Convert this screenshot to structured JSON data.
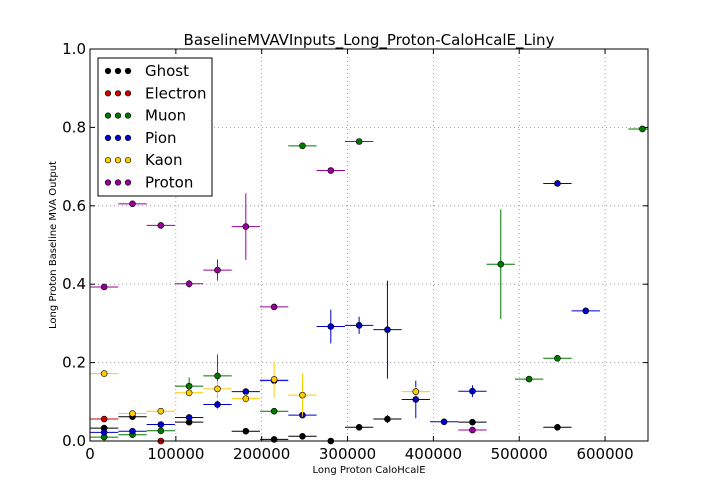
{
  "chart_data": {
    "type": "scatter",
    "title": "BaselineMVAVInputs_Long_Proton-CaloHcalE_Liny",
    "xlabel": "Long Proton CaloHcalE",
    "ylabel": "Long Proton Baseline MVA Output",
    "xlim": [
      0,
      650000
    ],
    "ylim": [
      0.0,
      1.0
    ],
    "xticks": [
      0,
      100000,
      200000,
      300000,
      400000,
      500000,
      600000
    ],
    "xtick_labels": [
      "0",
      "100000",
      "200000",
      "300000",
      "400000",
      "500000",
      "600000"
    ],
    "yticks": [
      0.0,
      0.2,
      0.4,
      0.6,
      0.8,
      1.0
    ],
    "ytick_labels": [
      "0.0",
      "0.2",
      "0.4",
      "0.6",
      "0.8",
      "1.0"
    ],
    "grid": true,
    "legend_position": "top-left",
    "x_bin_half_width": 16500,
    "series": [
      {
        "name": "Ghost",
        "color": "#000000",
        "points": [
          {
            "x": 16500,
            "y": 0.033,
            "yerr": 0.004
          },
          {
            "x": 49500,
            "y": 0.062,
            "yerr": 0.004
          },
          {
            "x": 115500,
            "y": 0.048,
            "yerr": 0.004
          },
          {
            "x": 181500,
            "y": 0.025,
            "yerr": 0.005
          },
          {
            "x": 214500,
            "y": 0.004,
            "yerr": 0.003
          },
          {
            "x": 247500,
            "y": 0.012,
            "yerr": 0.003
          },
          {
            "x": 280500,
            "y": 0.0,
            "yerr": 0.0
          },
          {
            "x": 313500,
            "y": 0.035,
            "yerr": 0.004
          },
          {
            "x": 346500,
            "y": 0.056,
            "yerr": 0.01
          },
          {
            "x": 445500,
            "y": 0.048,
            "yerr": 0.004
          },
          {
            "x": 544500,
            "y": 0.035,
            "yerr": 0.003
          }
        ]
      },
      {
        "name": "Electron",
        "color": "#cc0000",
        "points": [
          {
            "x": 16500,
            "y": 0.056,
            "yerr": 0.004
          },
          {
            "x": 82500,
            "y": 0.0,
            "yerr": 0.0
          }
        ]
      },
      {
        "name": "Muon",
        "color": "#007700",
        "points": [
          {
            "x": 16500,
            "y": 0.01,
            "yerr": 0.003
          },
          {
            "x": 49500,
            "y": 0.016,
            "yerr": 0.003
          },
          {
            "x": 82500,
            "y": 0.026,
            "yerr": 0.004
          },
          {
            "x": 115500,
            "y": 0.14,
            "yerr": 0.022
          },
          {
            "x": 148500,
            "y": 0.166,
            "yerr": 0.055
          },
          {
            "x": 214500,
            "y": 0.076,
            "yerr": 0.005
          },
          {
            "x": 247500,
            "y": 0.753,
            "yerr": 0.004
          },
          {
            "x": 313500,
            "y": 0.764,
            "yerr": 0.007
          },
          {
            "x": 478500,
            "y": 0.451,
            "yerr": 0.14
          },
          {
            "x": 511500,
            "y": 0.158,
            "yerr": 0.006
          },
          {
            "x": 544500,
            "y": 0.211,
            "yerr": 0.006
          },
          {
            "x": 643500,
            "y": 0.796,
            "yerr": 0.004
          }
        ]
      },
      {
        "name": "Pion",
        "color": "#0000cc",
        "points": [
          {
            "x": 16500,
            "y": 0.022,
            "yerr": 0.003
          },
          {
            "x": 49500,
            "y": 0.025,
            "yerr": 0.003
          },
          {
            "x": 82500,
            "y": 0.042,
            "yerr": 0.004
          },
          {
            "x": 115500,
            "y": 0.06,
            "yerr": 0.004
          },
          {
            "x": 148500,
            "y": 0.093,
            "yerr": 0.01
          },
          {
            "x": 181500,
            "y": 0.126,
            "yerr": 0.005
          },
          {
            "x": 214500,
            "y": 0.154,
            "yerr": 0.004
          },
          {
            "x": 247500,
            "y": 0.066,
            "yerr": 0.004
          },
          {
            "x": 280500,
            "y": 0.292,
            "yerr": 0.043
          },
          {
            "x": 313500,
            "y": 0.295,
            "yerr": 0.022
          },
          {
            "x": 346500,
            "y": 0.284,
            "yerr": 0.125
          },
          {
            "x": 379500,
            "y": 0.106,
            "yerr": 0.048
          },
          {
            "x": 412500,
            "y": 0.049,
            "yerr": 0.003
          },
          {
            "x": 445500,
            "y": 0.127,
            "yerr": 0.015
          },
          {
            "x": 544500,
            "y": 0.657,
            "yerr": 0.004
          },
          {
            "x": 577500,
            "y": 0.332,
            "yerr": 0.004
          }
        ]
      },
      {
        "name": "Kaon",
        "color": "#ffcc00",
        "points": [
          {
            "x": 16500,
            "y": 0.172,
            "yerr": 0.004
          },
          {
            "x": 49500,
            "y": 0.07,
            "yerr": 0.004
          },
          {
            "x": 82500,
            "y": 0.076,
            "yerr": 0.004
          },
          {
            "x": 115500,
            "y": 0.123,
            "yerr": 0.01
          },
          {
            "x": 148500,
            "y": 0.133,
            "yerr": 0.02
          },
          {
            "x": 181500,
            "y": 0.108,
            "yerr": 0.012
          },
          {
            "x": 214500,
            "y": 0.157,
            "yerr": 0.045
          },
          {
            "x": 247500,
            "y": 0.117,
            "yerr": 0.055
          },
          {
            "x": 379500,
            "y": 0.126,
            "yerr": 0.012
          }
        ]
      },
      {
        "name": "Proton",
        "color": "#990099",
        "points": [
          {
            "x": 16500,
            "y": 0.393,
            "yerr": 0.004
          },
          {
            "x": 49500,
            "y": 0.605,
            "yerr": 0.004
          },
          {
            "x": 82500,
            "y": 0.55,
            "yerr": 0.004
          },
          {
            "x": 115500,
            "y": 0.401,
            "yerr": 0.01
          },
          {
            "x": 148500,
            "y": 0.436,
            "yerr": 0.027
          },
          {
            "x": 181500,
            "y": 0.547,
            "yerr": 0.085
          },
          {
            "x": 214500,
            "y": 0.342,
            "yerr": 0.004
          },
          {
            "x": 280500,
            "y": 0.69,
            "yerr": 0.004
          },
          {
            "x": 445500,
            "y": 0.028,
            "yerr": 0.003
          }
        ]
      }
    ]
  }
}
